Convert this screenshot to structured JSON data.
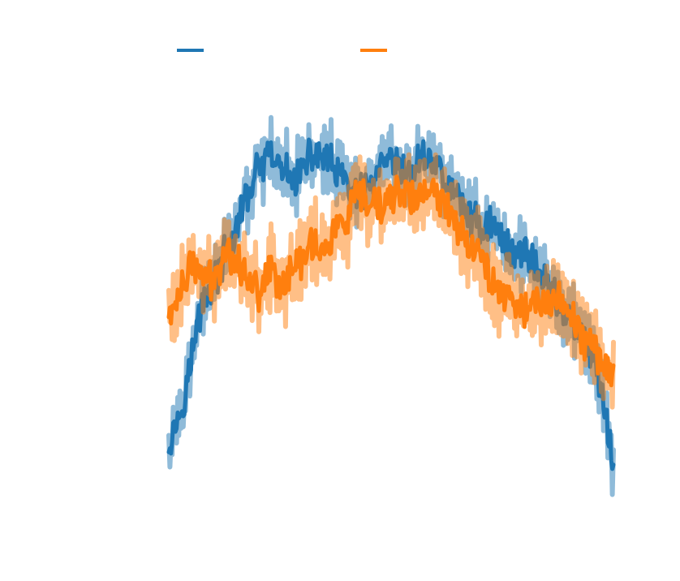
{
  "chart_data": {
    "type": "line",
    "title": "",
    "xlabel": "",
    "ylabel": "",
    "xlim": [
      0,
      400
    ],
    "ylim": [
      -1.5,
      1.5
    ],
    "grid": false,
    "axes_visible": false,
    "legend": {
      "placement": "top",
      "orientation": "horizontal"
    },
    "series": [
      {
        "color": "#1f77b4",
        "x": [
          0,
          10,
          20,
          30,
          40,
          50,
          60,
          70,
          80,
          90,
          100,
          110,
          120,
          130,
          140,
          150,
          160,
          170,
          180,
          190,
          200,
          210,
          220,
          230,
          240,
          250,
          260,
          270,
          280,
          290,
          300,
          310,
          320,
          330,
          340,
          350,
          360,
          370,
          380,
          390,
          400
        ],
        "values": [
          -0.85,
          -0.7,
          -0.4,
          -0.05,
          0.05,
          0.2,
          0.35,
          0.55,
          0.7,
          0.78,
          0.72,
          0.65,
          0.7,
          0.8,
          0.78,
          0.7,
          0.62,
          0.55,
          0.6,
          0.7,
          0.75,
          0.68,
          0.7,
          0.8,
          0.75,
          0.62,
          0.55,
          0.45,
          0.38,
          0.4,
          0.3,
          0.22,
          0.25,
          0.15,
          0.05,
          -0.05,
          -0.15,
          -0.25,
          -0.35,
          -0.6,
          -1.05
        ],
        "spread": 0.15
      },
      {
        "color": "#ff7f0e",
        "x": [
          0,
          10,
          20,
          30,
          40,
          50,
          60,
          70,
          80,
          90,
          100,
          110,
          120,
          130,
          140,
          150,
          160,
          170,
          180,
          190,
          200,
          210,
          220,
          230,
          240,
          250,
          260,
          270,
          280,
          290,
          300,
          310,
          320,
          330,
          340,
          350,
          360,
          370,
          380,
          390,
          400
        ],
        "values": [
          -0.15,
          0.0,
          0.15,
          0.1,
          0.05,
          0.25,
          0.2,
          0.1,
          0.0,
          0.15,
          0.05,
          0.1,
          0.2,
          0.3,
          0.22,
          0.38,
          0.4,
          0.55,
          0.5,
          0.48,
          0.55,
          0.6,
          0.52,
          0.58,
          0.55,
          0.5,
          0.4,
          0.3,
          0.2,
          0.1,
          0.0,
          -0.05,
          -0.1,
          -0.05,
          -0.1,
          0.0,
          -0.1,
          -0.25,
          -0.3,
          -0.4,
          -0.45
        ],
        "spread": 0.2
      }
    ]
  }
}
